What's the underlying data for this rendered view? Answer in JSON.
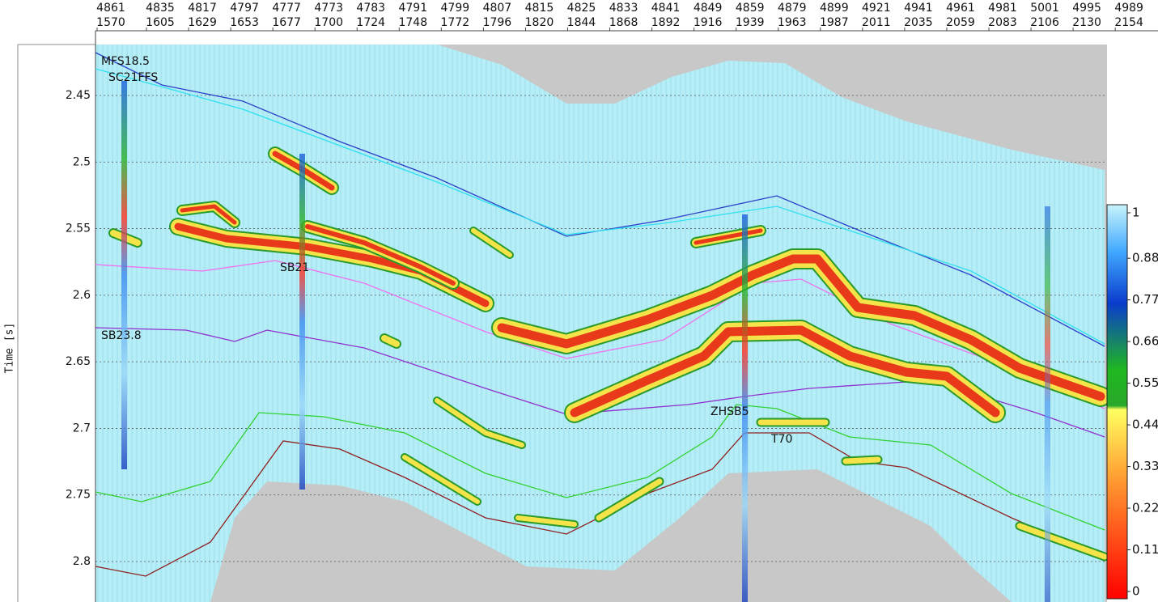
{
  "top_axis": {
    "trace_labels": [
      4861,
      4835,
      4817,
      4797,
      4777,
      4773,
      4783,
      4791,
      4799,
      4807,
      4815,
      4825,
      4833,
      4841,
      4849,
      4859,
      4879,
      4899,
      4921,
      4941,
      4961,
      4981,
      5001,
      4995,
      4989
    ],
    "cdp_labels": [
      1570,
      1605,
      1629,
      1653,
      1677,
      1700,
      1724,
      1748,
      1772,
      1796,
      1820,
      1844,
      1868,
      1892,
      1916,
      1939,
      1963,
      1987,
      2011,
      2035,
      2059,
      2083,
      2106,
      2130,
      2154
    ]
  },
  "left_axis": {
    "label": "Time [s]",
    "ticks": [
      2.45,
      2.5,
      2.55,
      2.6,
      2.65,
      2.7,
      2.75,
      2.8
    ]
  },
  "horizons": [
    {
      "label": "MFS18.5"
    },
    {
      "label": "SC21FFS"
    },
    {
      "label": "SB21"
    },
    {
      "label": "SB23.8"
    },
    {
      "label": "ZHSB5"
    },
    {
      "label": "T70"
    }
  ],
  "colorbar": {
    "ticks": [
      1,
      0.88,
      0.77,
      0.66,
      0.55,
      0.44,
      0.33,
      0.22,
      0.11,
      0
    ]
  }
}
